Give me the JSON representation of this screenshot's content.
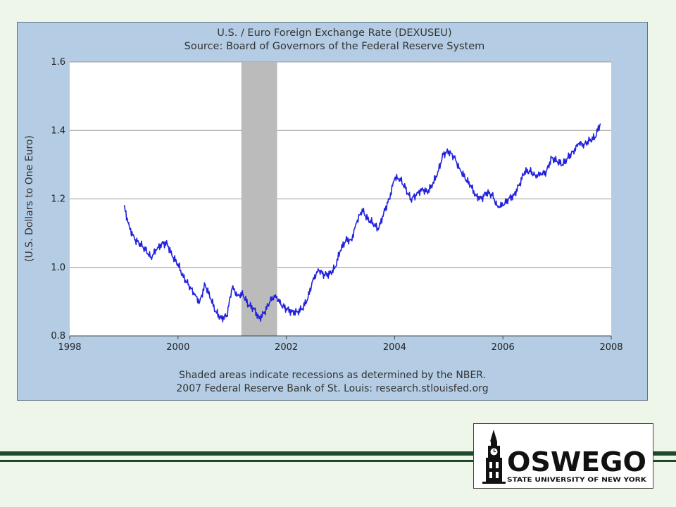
{
  "chart_data": {
    "type": "line",
    "title": "U.S. / Euro Foreign Exchange Rate (DEXUSEU)",
    "subtitle": "Source: Board of Governors of the Federal Reserve System",
    "ylabel": "(U.S. Dollars to One Euro)",
    "xlabel": "",
    "xlim": [
      1998,
      2008
    ],
    "ylim": [
      0.8,
      1.6
    ],
    "xticks": [
      "1998",
      "2000",
      "2002",
      "2004",
      "2006",
      "2008"
    ],
    "yticks": [
      "0.8",
      "1.0",
      "1.2",
      "1.4",
      "1.6"
    ],
    "grid": true,
    "line_color": "#2222dd",
    "recession_color": "#bbbbbb",
    "recessions": [
      {
        "start": 2001.17,
        "end": 2001.83
      }
    ],
    "series": [
      {
        "x": [
          1999.0,
          1999.1,
          1999.2,
          1999.3,
          1999.4,
          1999.5,
          1999.6,
          1999.7,
          1999.8,
          1999.9,
          2000.0,
          2000.1,
          2000.2,
          2000.3,
          2000.4,
          2000.5,
          2000.6,
          2000.7,
          2000.8,
          2000.9,
          2001.0,
          2001.1,
          2001.2,
          2001.3,
          2001.4,
          2001.5,
          2001.6,
          2001.7,
          2001.8,
          2001.9,
          2002.0,
          2002.1,
          2002.2,
          2002.3,
          2002.4,
          2002.5,
          2002.6,
          2002.7,
          2002.8,
          2002.9,
          2003.0,
          2003.1,
          2003.2,
          2003.3,
          2003.4,
          2003.5,
          2003.6,
          2003.7,
          2003.8,
          2003.9,
          2004.0,
          2004.1,
          2004.2,
          2004.3,
          2004.4,
          2004.5,
          2004.6,
          2004.7,
          2004.8,
          2004.9,
          2005.0,
          2005.1,
          2005.2,
          2005.3,
          2005.4,
          2005.5,
          2005.6,
          2005.7,
          2005.8,
          2005.9,
          2006.0,
          2006.1,
          2006.2,
          2006.3,
          2006.4,
          2006.5,
          2006.6,
          2006.7,
          2006.8,
          2006.9,
          2007.0,
          2007.1,
          2007.2,
          2007.3,
          2007.4,
          2007.5,
          2007.6,
          2007.7,
          2007.8
        ],
        "values": [
          1.18,
          1.12,
          1.08,
          1.07,
          1.05,
          1.03,
          1.05,
          1.07,
          1.07,
          1.03,
          1.01,
          0.97,
          0.95,
          0.92,
          0.9,
          0.95,
          0.91,
          0.87,
          0.85,
          0.86,
          0.94,
          0.92,
          0.92,
          0.89,
          0.88,
          0.85,
          0.87,
          0.9,
          0.92,
          0.89,
          0.88,
          0.87,
          0.87,
          0.88,
          0.91,
          0.97,
          0.99,
          0.98,
          0.98,
          1.0,
          1.05,
          1.08,
          1.08,
          1.13,
          1.17,
          1.14,
          1.13,
          1.11,
          1.16,
          1.2,
          1.26,
          1.26,
          1.23,
          1.2,
          1.21,
          1.23,
          1.22,
          1.24,
          1.28,
          1.33,
          1.34,
          1.32,
          1.29,
          1.26,
          1.24,
          1.21,
          1.2,
          1.22,
          1.21,
          1.18,
          1.18,
          1.2,
          1.21,
          1.24,
          1.28,
          1.28,
          1.27,
          1.27,
          1.28,
          1.32,
          1.31,
          1.3,
          1.32,
          1.34,
          1.36,
          1.36,
          1.37,
          1.38,
          1.42
        ]
      }
    ],
    "notes": [
      "Shaded areas indicate recessions as determined by the NBER.",
      "2007 Federal Reserve Bank of St. Louis: research.stlouisfed.org"
    ]
  },
  "logo": {
    "name": "OSWEGO",
    "tagline": "STATE UNIVERSITY OF NEW YORK"
  },
  "colors": {
    "panel_background": "#b4cde4",
    "plot_background": "#ffffff",
    "slide_background": "#eef6ea",
    "accent_green": "#1d4a2a"
  }
}
